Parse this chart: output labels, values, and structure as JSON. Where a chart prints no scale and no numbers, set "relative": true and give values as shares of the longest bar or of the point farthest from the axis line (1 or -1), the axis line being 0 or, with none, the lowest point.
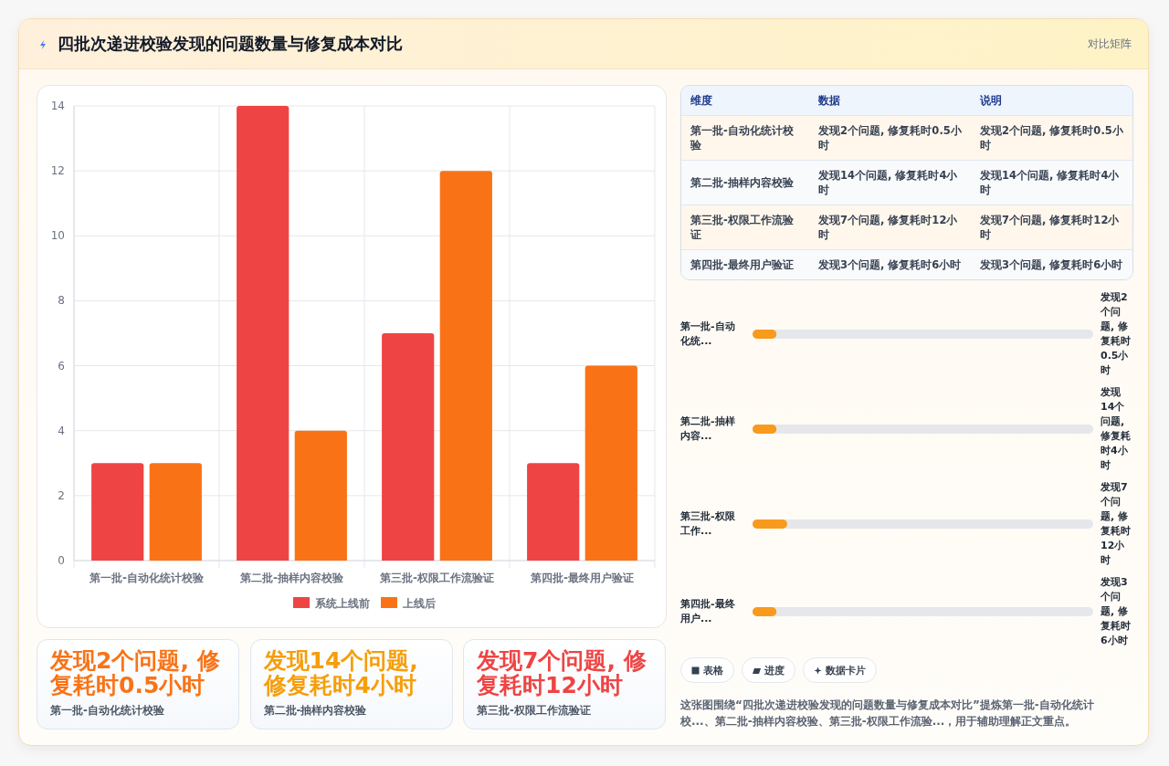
{
  "chart_data": [
    {
      "type": "other",
      "title": "四批次递进校验发现的问题数量与修复成本对比",
      "subtitle": "对比矩阵"
    },
    {
      "type": "bar",
      "categories": [
        "第一批-自动化统计校验",
        "第二批-抽样内容校验",
        "第三批-权限工作流验证",
        "第四批-最终用户验证"
      ],
      "series": [
        {
          "name": "系统上线前",
          "color": "#ef4444",
          "values": [
            3,
            14,
            7,
            3
          ]
        },
        {
          "name": "上线后",
          "color": "#f97316",
          "values": [
            3,
            4,
            12,
            6
          ]
        }
      ],
      "ylim": [
        0,
        14
      ],
      "yticks": [
        0,
        2,
        4,
        6,
        8,
        10,
        12,
        14
      ],
      "grid": true,
      "legend": "bottom"
    },
    {
      "type": "other",
      "annotations": [
        "维度",
        "数据",
        "说明",
        "第一批-自动化统计校验",
        "发现2个问题, 修复耗时0.5小时",
        "发现2个问题, 修复耗时0.5小时",
        "第二批-抽样内容校验",
        "发现14个问题, 修复耗时4小时",
        "发现14个问题, 修复耗时4小时",
        "第三批-权限工作流验证",
        "发现7个问题, 修复耗时12小时",
        "发现7个问题, 修复耗时12小时",
        "第四批-最终用户验证",
        "发现3个问题, 修复耗时6小时",
        "发现3个问题, 修复耗时6小时"
      ]
    },
    {
      "type": "bar",
      "orientation": "horizontal",
      "relative": true,
      "categories": [
        "第一批-自动化统...",
        "第二批-抽样内容...",
        "第三批-权限工作...",
        "第四批-最终用户..."
      ],
      "values": [
        0.69,
        0.69,
        1,
        0.69
      ],
      "color": "#f89a1c",
      "annotations": [
        "发现2个问题, 修复耗时0.5小时",
        "发现14个问题, 修复耗时4小时",
        "发现7个问题, 修复耗时12小时",
        "发现3个问题, 修复耗时6小时"
      ]
    },
    {
      "type": "other",
      "annotations": [
        "表格",
        "进度",
        "数据卡片",
        "这张图围绕“四批次递进校验发现的问题数量与修复成本对比”提炼第一批-自动化统计校...、第二批-抽样内容校验、第三批-权限工作流验...，用于辅助理解正文重点。"
      ]
    },
    {
      "type": "other",
      "annotations": [
        "发现2个问题, 修复耗时0.5小时",
        "第一批-自动化统计校验",
        "发现14个问题, 修复耗时4小时",
        "第二批-抽样内容校验",
        "发现7个问题, 修复耗时12小时",
        "第三批-权限工作流验证"
      ],
      "colors": [
        "#f97316",
        "#f59e0b",
        "#ef4444"
      ]
    }
  ]
}
